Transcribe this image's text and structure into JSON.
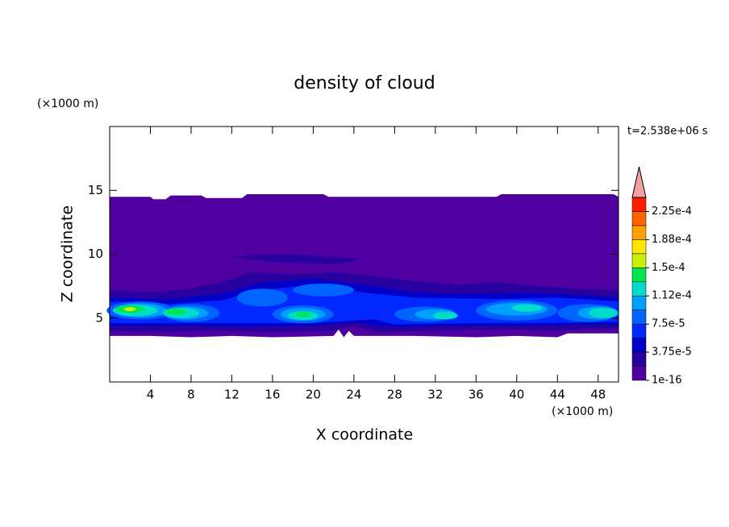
{
  "chart_data": {
    "type": "contour",
    "title": "density of cloud",
    "x_label": "X coordinate",
    "y_label": "Z coordinate",
    "x_unit": "(×1000 m)",
    "y_unit": "(×1000 m)",
    "annotation": "t=2.538e+06 s",
    "xlim": [
      0,
      50
    ],
    "ylim": [
      0,
      20
    ],
    "xticks": [
      4,
      8,
      12,
      16,
      20,
      24,
      28,
      32,
      36,
      40,
      44,
      48
    ],
    "yticks": [
      5,
      10,
      15
    ],
    "colorbar": {
      "levels": [
        1e-16,
        1.875e-05,
        3.75e-05,
        5.625e-05,
        7.5e-05,
        9.375e-05,
        0.0001125,
        0.00013125,
        0.00015,
        0.00016875,
        0.0001875,
        0.00020625,
        0.000225,
        0.00024375
      ],
      "colors": [
        "#5000a0",
        "#2800a0",
        "#0000c8",
        "#0028ff",
        "#0064ff",
        "#00a0ff",
        "#00dcc8",
        "#00e650",
        "#c8f000",
        "#ffe600",
        "#ffa000",
        "#ff6400",
        "#ff1e00"
      ],
      "extend_color": "#f4a0a0",
      "ticks": [
        {
          "value": 1e-16,
          "label": "1e-16"
        },
        {
          "value": 3.75e-05,
          "label": "3.75e-5"
        },
        {
          "value": 7.5e-05,
          "label": "7.5e-5"
        },
        {
          "value": 0.0001125,
          "label": "1.12e-4"
        },
        {
          "value": 0.00015,
          "label": "1.5e-4"
        },
        {
          "value": 0.0001875,
          "label": "1.88e-4"
        },
        {
          "value": 0.000225,
          "label": "2.25e-4"
        }
      ]
    }
  }
}
